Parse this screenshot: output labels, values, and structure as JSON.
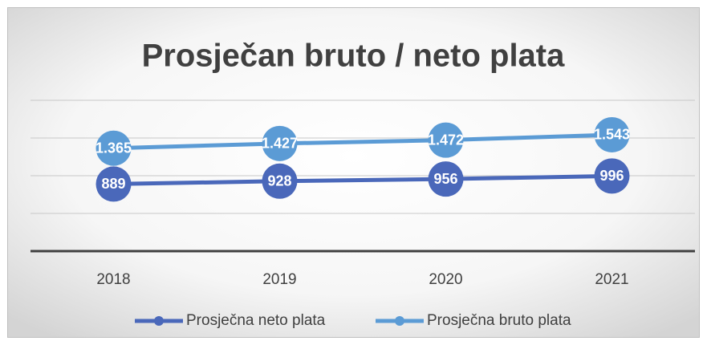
{
  "chart_data": {
    "type": "line",
    "title": "Prosječan bruto / neto plata",
    "categories": [
      "2018",
      "2019",
      "2020",
      "2021"
    ],
    "series": [
      {
        "name": "Prosječna neto plata",
        "color": "#4a68ba",
        "values": [
          889,
          928,
          956,
          996
        ]
      },
      {
        "name": "Prosječna bruto plata",
        "color": "#5b9bd5",
        "values": [
          1365,
          1427,
          1472,
          1543
        ],
        "value_labels": [
          "1.365",
          "1.427",
          "1.472",
          "1.543"
        ]
      }
    ],
    "ylim": [
      0,
      2000
    ],
    "yticks": [
      0,
      500,
      1000,
      1500,
      2000
    ],
    "grid": true,
    "legend": "bottom"
  }
}
